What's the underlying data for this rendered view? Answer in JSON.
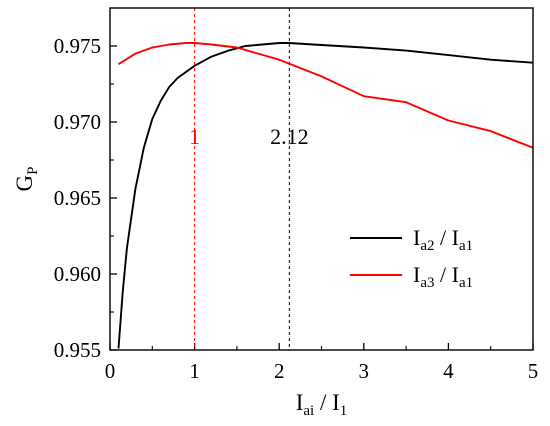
{
  "chart_data": {
    "type": "line",
    "xlabel": {
      "base": "I",
      "sub": "ai",
      "sep": " / ",
      "base2": "I",
      "sub2": "1"
    },
    "ylabel": {
      "base": "G",
      "sub": "P"
    },
    "xlim": [
      0,
      5
    ],
    "ylim": [
      0.955,
      0.9775
    ],
    "x_ticks": [
      0,
      1,
      2,
      3,
      4,
      5
    ],
    "x_tick_labels": [
      "0",
      "1",
      "2",
      "3",
      "4",
      "5"
    ],
    "y_ticks": [
      0.955,
      0.96,
      0.965,
      0.97,
      0.975
    ],
    "y_tick_labels": [
      "0.955",
      "0.960",
      "0.965",
      "0.970",
      "0.975"
    ],
    "grid": false,
    "legend_position": "center-right",
    "series": [
      {
        "name": {
          "a": "I",
          "asub": "a2",
          "sep": " / ",
          "b": "I",
          "bsub": "a1"
        },
        "color": "#000000",
        "x": [
          0.1,
          0.15,
          0.2,
          0.3,
          0.4,
          0.5,
          0.6,
          0.7,
          0.8,
          1.0,
          1.2,
          1.4,
          1.6,
          1.8,
          2.0,
          2.12,
          2.4,
          2.7,
          3.0,
          3.5,
          4.0,
          4.5,
          5.0
        ],
        "y": [
          0.9551,
          0.9588,
          0.9617,
          0.9656,
          0.9683,
          0.9702,
          0.9714,
          0.9723,
          0.9729,
          0.9737,
          0.9743,
          0.9747,
          0.975,
          0.9751,
          0.9752,
          0.9752,
          0.9751,
          0.975,
          0.9749,
          0.9747,
          0.9744,
          0.9741,
          0.9739
        ]
      },
      {
        "name": {
          "a": "I",
          "asub": "a3",
          "sep": " / ",
          "b": "I",
          "bsub": "a1"
        },
        "color": "#ff0000",
        "x": [
          0.1,
          0.3,
          0.5,
          0.7,
          0.9,
          1.0,
          1.2,
          1.5,
          2.0,
          2.5,
          3.0,
          3.5,
          4.0,
          4.5,
          5.0
        ],
        "y": [
          0.9738,
          0.9745,
          0.9749,
          0.9751,
          0.9752,
          0.9752,
          0.9751,
          0.9749,
          0.9741,
          0.973,
          0.9717,
          0.9713,
          0.9701,
          0.9694,
          0.9683
        ]
      }
    ],
    "annotations": [
      {
        "x": 1.0,
        "label": "1",
        "color": "#ff0000"
      },
      {
        "x": 2.12,
        "label": "2.12",
        "color": "#000000"
      }
    ]
  }
}
